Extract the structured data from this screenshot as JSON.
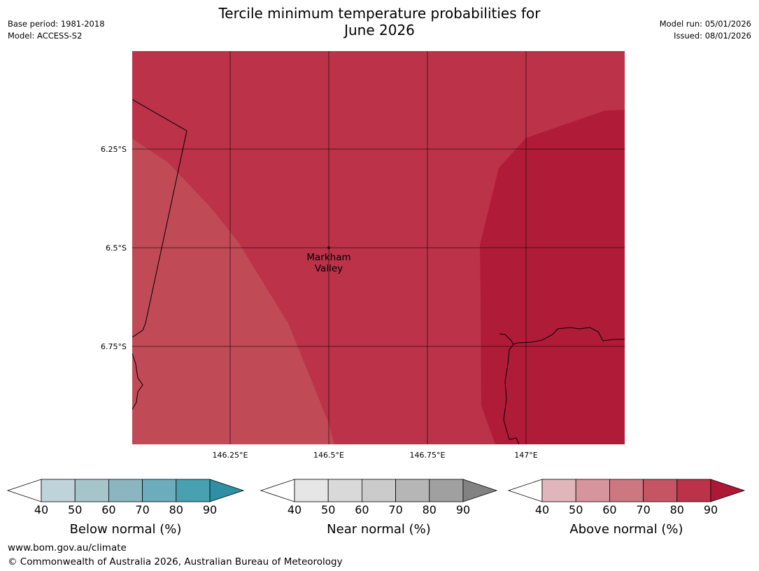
{
  "header": {
    "title_line1": "Tercile minimum temperature probabilities for",
    "title_line2": "June 2026",
    "base_period": "Base period: 1981-2018",
    "model": "Model: ACCESS-S2",
    "model_run": "Model run: 05/01/2026",
    "issued": "Issued: 08/01/2026"
  },
  "map": {
    "lat_labels": [
      "6.25°S",
      "6.5°S",
      "6.75°S"
    ],
    "lon_labels": [
      "146.25°E",
      "146.5°E",
      "146.75°E",
      "147°E"
    ],
    "place": {
      "line1": "Markham",
      "line2": "Valley"
    },
    "region_probability_colors": [
      "#c04a55",
      "#bb3249",
      "#b01c38"
    ],
    "grid_color": "#000000"
  },
  "legends": [
    {
      "name": "below-normal",
      "label": "Below normal (%)",
      "ticks": [
        "40",
        "50",
        "60",
        "70",
        "80",
        "90"
      ],
      "colors": [
        "#bed4da",
        "#a6c5cb",
        "#8bb5c1",
        "#6cacbc",
        "#48a1b0",
        "#2f8fa3"
      ]
    },
    {
      "name": "near-normal",
      "label": "Near normal (%)",
      "ticks": [
        "40",
        "50",
        "60",
        "70",
        "80",
        "90"
      ],
      "colors": [
        "#e6e6e6",
        "#d9d9d9",
        "#cbcbcb",
        "#b6b6b6",
        "#a0a0a0",
        "#828282"
      ]
    },
    {
      "name": "above-normal",
      "label": "Above normal (%)",
      "ticks": [
        "40",
        "50",
        "60",
        "70",
        "80",
        "90"
      ],
      "colors": [
        "#e1b6bb",
        "#d6949c",
        "#cd7880",
        "#c55563",
        "#bb3249",
        "#ad1836"
      ]
    }
  ],
  "footer": {
    "url": "www.bom.gov.au/climate",
    "copyright": "© Commonwealth of Australia 2026, Australian Bureau of Meteorology"
  }
}
